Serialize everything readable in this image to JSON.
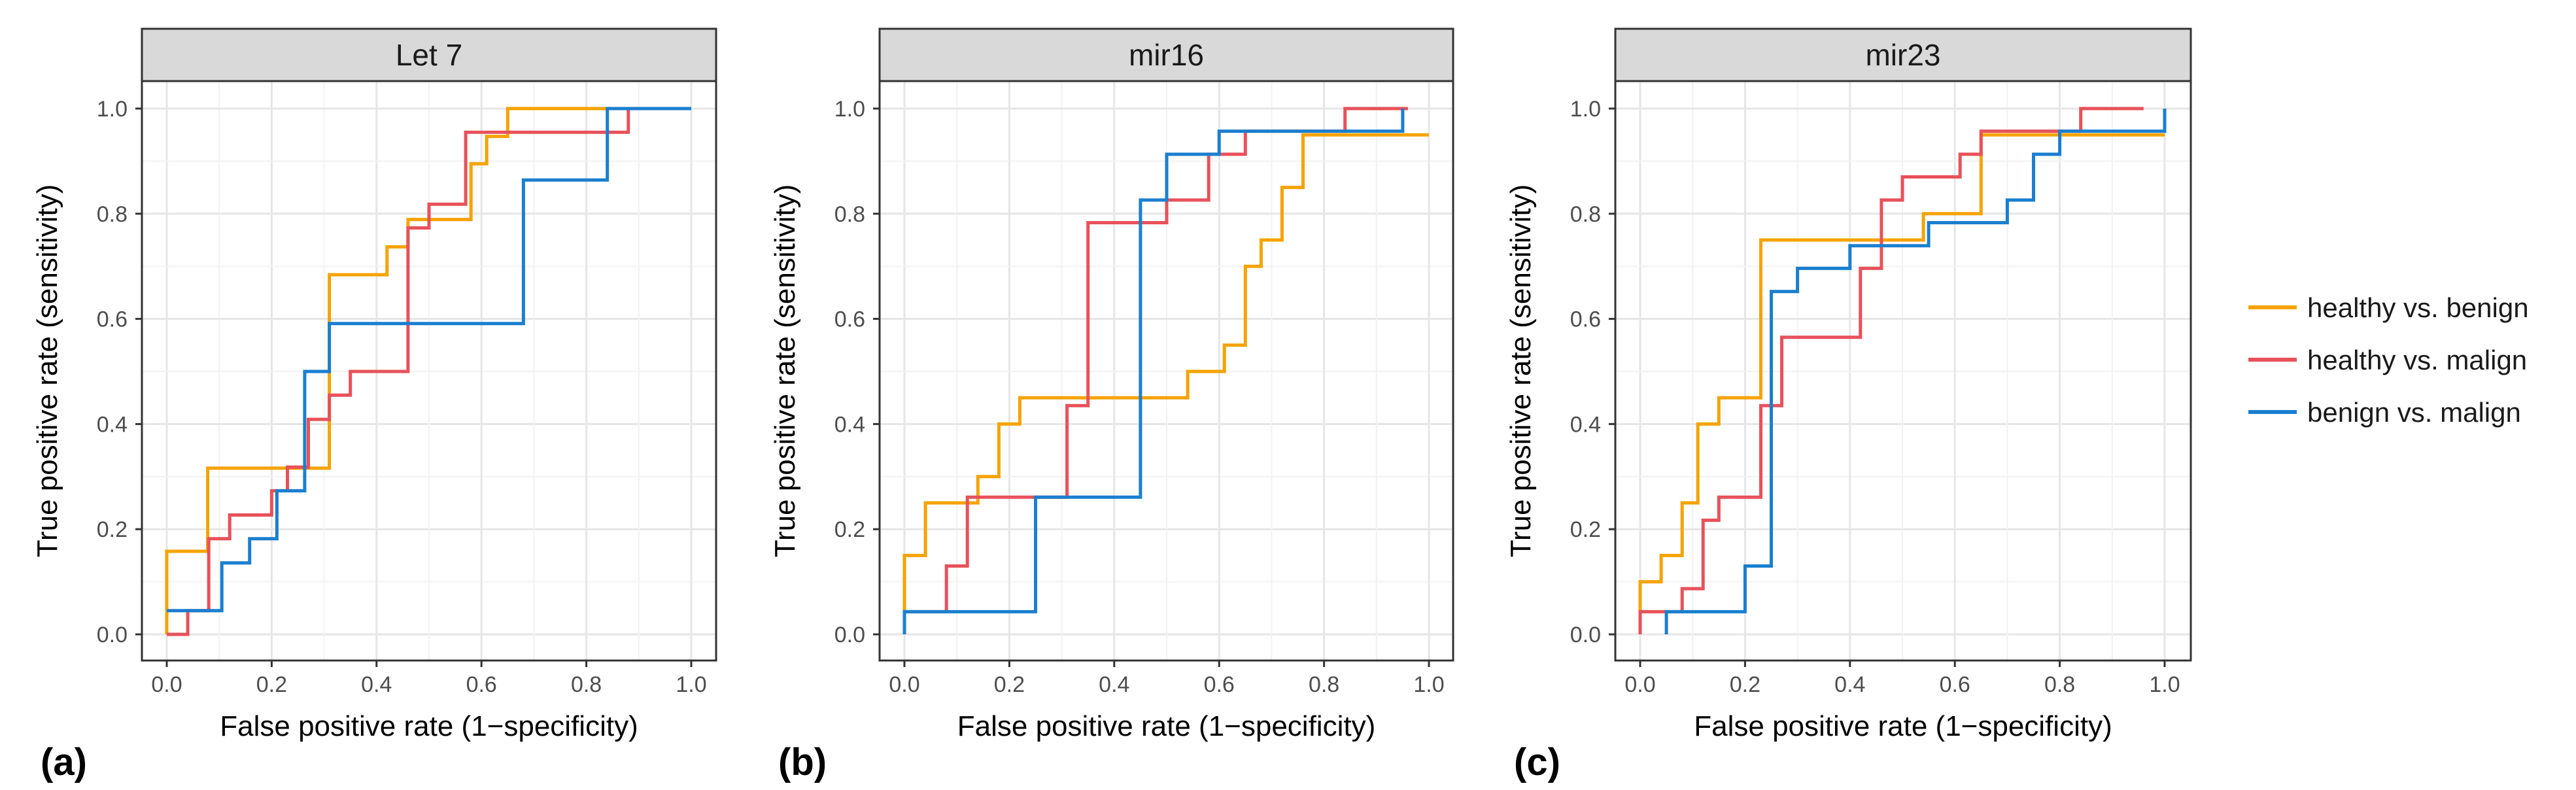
{
  "chart_data": [
    {
      "type": "line",
      "panel_tag": "(a)",
      "title": "Let 7",
      "xlabel": "False positive rate (1−specificity)",
      "ylabel": "True positive rate (sensitivity)",
      "xlim": [
        0,
        1
      ],
      "ylim": [
        0,
        1
      ],
      "ticks": [
        "0.0",
        "0.2",
        "0.4",
        "0.6",
        "0.8",
        "1.0"
      ],
      "series": [
        {
          "name": "healthy vs. benign",
          "color": "#F5A300",
          "points": [
            [
              0,
              0
            ],
            [
              0,
              0.158
            ],
            [
              0.078,
              0.158
            ],
            [
              0.078,
              0.316
            ],
            [
              0.31,
              0.316
            ],
            [
              0.31,
              0.684
            ],
            [
              0.42,
              0.684
            ],
            [
              0.42,
              0.737
            ],
            [
              0.46,
              0.737
            ],
            [
              0.46,
              0.789
            ],
            [
              0.58,
              0.789
            ],
            [
              0.58,
              0.895
            ],
            [
              0.61,
              0.895
            ],
            [
              0.61,
              0.947
            ],
            [
              0.65,
              0.947
            ],
            [
              0.65,
              1.0
            ],
            [
              1.0,
              1.0
            ]
          ]
        },
        {
          "name": "healthy vs. malign",
          "color": "#E8515A",
          "points": [
            [
              0,
              0
            ],
            [
              0.04,
              0
            ],
            [
              0.04,
              0.045
            ],
            [
              0.08,
              0.045
            ],
            [
              0.08,
              0.182
            ],
            [
              0.12,
              0.182
            ],
            [
              0.12,
              0.227
            ],
            [
              0.2,
              0.227
            ],
            [
              0.2,
              0.273
            ],
            [
              0.23,
              0.273
            ],
            [
              0.23,
              0.318
            ],
            [
              0.27,
              0.318
            ],
            [
              0.27,
              0.409
            ],
            [
              0.31,
              0.409
            ],
            [
              0.31,
              0.455
            ],
            [
              0.35,
              0.455
            ],
            [
              0.35,
              0.5
            ],
            [
              0.46,
              0.5
            ],
            [
              0.46,
              0.773
            ],
            [
              0.5,
              0.773
            ],
            [
              0.5,
              0.818
            ],
            [
              0.57,
              0.818
            ],
            [
              0.57,
              0.955
            ],
            [
              0.88,
              0.955
            ],
            [
              0.88,
              1.0
            ],
            [
              1.0,
              1.0
            ]
          ]
        },
        {
          "name": "benign vs. malign",
          "color": "#1A7FCF",
          "points": [
            [
              0,
              0.045
            ],
            [
              0.105,
              0.045
            ],
            [
              0.105,
              0.136
            ],
            [
              0.158,
              0.136
            ],
            [
              0.158,
              0.182
            ],
            [
              0.21,
              0.182
            ],
            [
              0.21,
              0.273
            ],
            [
              0.263,
              0.273
            ],
            [
              0.263,
              0.5
            ],
            [
              0.31,
              0.5
            ],
            [
              0.31,
              0.591
            ],
            [
              0.68,
              0.591
            ],
            [
              0.68,
              0.864
            ],
            [
              0.84,
              0.864
            ],
            [
              0.84,
              1.0
            ],
            [
              1.0,
              1.0
            ]
          ]
        }
      ]
    },
    {
      "type": "line",
      "panel_tag": "(b)",
      "title": "mir16",
      "xlabel": "False positive rate (1−specificity)",
      "ylabel": "True positive rate (sensitivity)",
      "xlim": [
        0,
        1
      ],
      "ylim": [
        0,
        1
      ],
      "ticks": [
        "0.0",
        "0.2",
        "0.4",
        "0.6",
        "0.8",
        "1.0"
      ],
      "series": [
        {
          "name": "healthy vs. benign",
          "color": "#F5A300",
          "points": [
            [
              0,
              0
            ],
            [
              0,
              0.15
            ],
            [
              0.04,
              0.15
            ],
            [
              0.04,
              0.25
            ],
            [
              0.14,
              0.25
            ],
            [
              0.14,
              0.3
            ],
            [
              0.18,
              0.3
            ],
            [
              0.18,
              0.4
            ],
            [
              0.22,
              0.4
            ],
            [
              0.22,
              0.45
            ],
            [
              0.54,
              0.45
            ],
            [
              0.54,
              0.5
            ],
            [
              0.61,
              0.5
            ],
            [
              0.61,
              0.55
            ],
            [
              0.65,
              0.55
            ],
            [
              0.65,
              0.7
            ],
            [
              0.68,
              0.7
            ],
            [
              0.68,
              0.75
            ],
            [
              0.72,
              0.75
            ],
            [
              0.72,
              0.85
            ],
            [
              0.76,
              0.85
            ],
            [
              0.76,
              0.95
            ],
            [
              1.0,
              0.95
            ]
          ]
        },
        {
          "name": "healthy vs. malign",
          "color": "#E8515A",
          "points": [
            [
              0,
              0.043
            ],
            [
              0.08,
              0.043
            ],
            [
              0.08,
              0.13
            ],
            [
              0.12,
              0.13
            ],
            [
              0.12,
              0.261
            ],
            [
              0.31,
              0.261
            ],
            [
              0.31,
              0.435
            ],
            [
              0.35,
              0.435
            ],
            [
              0.35,
              0.783
            ],
            [
              0.5,
              0.783
            ],
            [
              0.5,
              0.826
            ],
            [
              0.58,
              0.826
            ],
            [
              0.58,
              0.913
            ],
            [
              0.65,
              0.913
            ],
            [
              0.65,
              0.957
            ],
            [
              0.84,
              0.957
            ],
            [
              0.84,
              1.0
            ],
            [
              0.96,
              1.0
            ]
          ]
        },
        {
          "name": "benign vs. malign",
          "color": "#1A7FCF",
          "points": [
            [
              0,
              0
            ],
            [
              0,
              0.043
            ],
            [
              0.25,
              0.043
            ],
            [
              0.25,
              0.261
            ],
            [
              0.45,
              0.261
            ],
            [
              0.45,
              0.826
            ],
            [
              0.5,
              0.826
            ],
            [
              0.5,
              0.913
            ],
            [
              0.6,
              0.913
            ],
            [
              0.6,
              0.957
            ],
            [
              0.95,
              0.957
            ],
            [
              0.95,
              1.0
            ]
          ]
        }
      ]
    },
    {
      "type": "line",
      "panel_tag": "(c)",
      "title": "mir23",
      "xlabel": "False positive rate (1−specificity)",
      "ylabel": "True positive rate (sensitivity)",
      "xlim": [
        0,
        1
      ],
      "ylim": [
        0,
        1
      ],
      "ticks": [
        "0.0",
        "0.2",
        "0.4",
        "0.6",
        "0.8",
        "1.0"
      ],
      "series": [
        {
          "name": "healthy vs. benign",
          "color": "#F5A300",
          "points": [
            [
              0,
              0
            ],
            [
              0,
              0.1
            ],
            [
              0.04,
              0.1
            ],
            [
              0.04,
              0.15
            ],
            [
              0.08,
              0.15
            ],
            [
              0.08,
              0.25
            ],
            [
              0.11,
              0.25
            ],
            [
              0.11,
              0.4
            ],
            [
              0.15,
              0.4
            ],
            [
              0.15,
              0.45
            ],
            [
              0.23,
              0.45
            ],
            [
              0.23,
              0.75
            ],
            [
              0.54,
              0.75
            ],
            [
              0.54,
              0.8
            ],
            [
              0.65,
              0.8
            ],
            [
              0.65,
              0.95
            ],
            [
              1.0,
              0.95
            ]
          ]
        },
        {
          "name": "healthy vs. malign",
          "color": "#E8515A",
          "points": [
            [
              0,
              0
            ],
            [
              0,
              0.043
            ],
            [
              0.08,
              0.043
            ],
            [
              0.08,
              0.087
            ],
            [
              0.12,
              0.087
            ],
            [
              0.12,
              0.217
            ],
            [
              0.15,
              0.217
            ],
            [
              0.15,
              0.261
            ],
            [
              0.23,
              0.261
            ],
            [
              0.23,
              0.435
            ],
            [
              0.27,
              0.435
            ],
            [
              0.27,
              0.565
            ],
            [
              0.42,
              0.565
            ],
            [
              0.42,
              0.696
            ],
            [
              0.46,
              0.696
            ],
            [
              0.46,
              0.826
            ],
            [
              0.5,
              0.826
            ],
            [
              0.5,
              0.87
            ],
            [
              0.61,
              0.87
            ],
            [
              0.61,
              0.913
            ],
            [
              0.65,
              0.913
            ],
            [
              0.65,
              0.957
            ],
            [
              0.84,
              0.957
            ],
            [
              0.84,
              1.0
            ],
            [
              0.96,
              1.0
            ]
          ]
        },
        {
          "name": "benign vs. malign",
          "color": "#1A7FCF",
          "points": [
            [
              0.05,
              0
            ],
            [
              0.05,
              0.043
            ],
            [
              0.2,
              0.043
            ],
            [
              0.2,
              0.13
            ],
            [
              0.25,
              0.13
            ],
            [
              0.25,
              0.652
            ],
            [
              0.3,
              0.652
            ],
            [
              0.3,
              0.696
            ],
            [
              0.4,
              0.696
            ],
            [
              0.4,
              0.739
            ],
            [
              0.55,
              0.739
            ],
            [
              0.55,
              0.783
            ],
            [
              0.7,
              0.783
            ],
            [
              0.7,
              0.826
            ],
            [
              0.75,
              0.826
            ],
            [
              0.75,
              0.913
            ],
            [
              0.8,
              0.913
            ],
            [
              0.8,
              0.957
            ],
            [
              1.0,
              0.957
            ],
            [
              1.0,
              1.0
            ]
          ]
        }
      ]
    }
  ],
  "legend": {
    "position": "right",
    "items": [
      {
        "label": "healthy vs. benign",
        "color": "#F5A300"
      },
      {
        "label": "healthy vs. malign",
        "color": "#E8515A"
      },
      {
        "label": "benign vs. malign",
        "color": "#1A7FCF"
      }
    ]
  }
}
